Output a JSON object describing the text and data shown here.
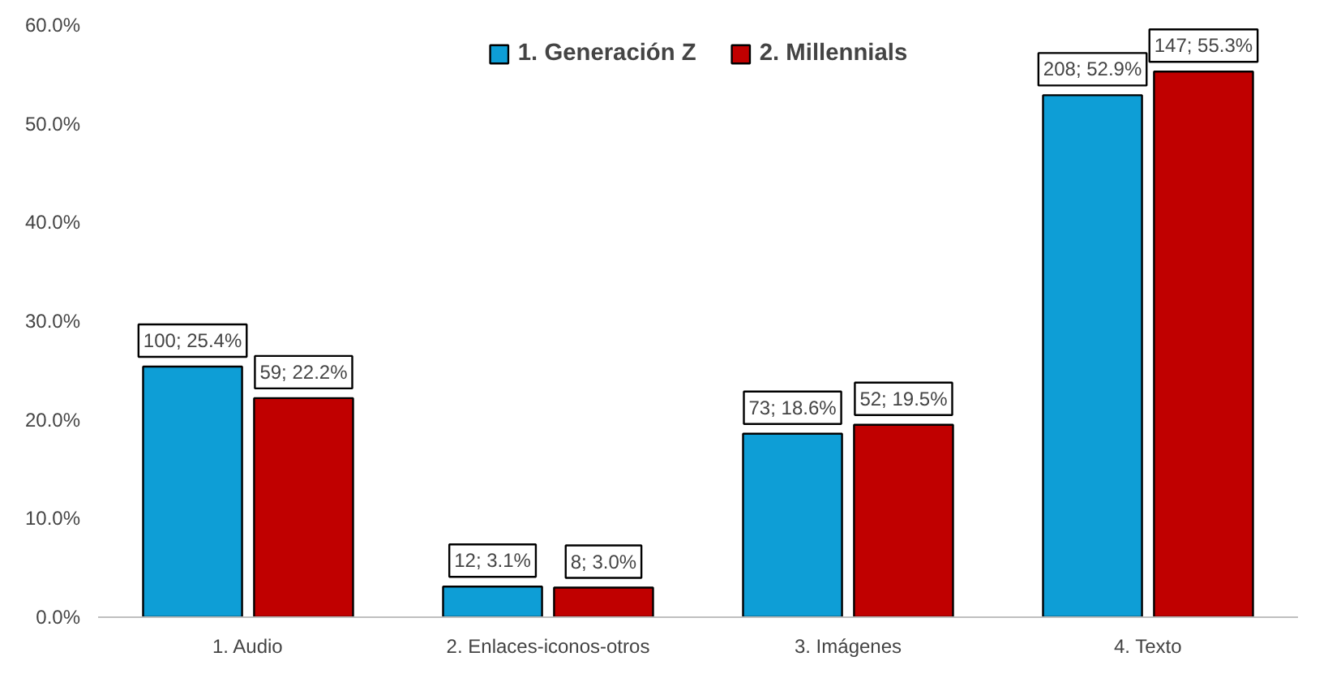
{
  "chart_data": {
    "type": "bar",
    "categories": [
      "1. Audio",
      "2. Enlaces-iconos-otros",
      "3. Imágenes",
      "4. Texto"
    ],
    "series": [
      {
        "name": "1. Generación Z",
        "color": "#0e9ed6",
        "values": [
          25.4,
          3.1,
          18.6,
          52.9
        ],
        "value_labels": [
          "100; 25.4%",
          "12; 3.1%",
          "73; 18.6%",
          "208; 52.9%"
        ]
      },
      {
        "name": "2. Millennials",
        "color": "#c00000",
        "values": [
          22.2,
          3.0,
          19.5,
          55.3
        ],
        "value_labels": [
          "59; 22.2%",
          "8; 3.0%",
          "52; 19.5%",
          "147; 55.3%"
        ]
      }
    ],
    "ylim": [
      0,
      60
    ],
    "yticks": [
      {
        "value": 0,
        "label": "0.0%"
      },
      {
        "value": 10,
        "label": "10.0%"
      },
      {
        "value": 20,
        "label": "20.0%"
      },
      {
        "value": 30,
        "label": "30.0%"
      },
      {
        "value": 40,
        "label": "40.0%"
      },
      {
        "value": 50,
        "label": "50.0%"
      },
      {
        "value": 60,
        "label": "60.0%"
      }
    ],
    "grid": false,
    "legend": "top"
  }
}
